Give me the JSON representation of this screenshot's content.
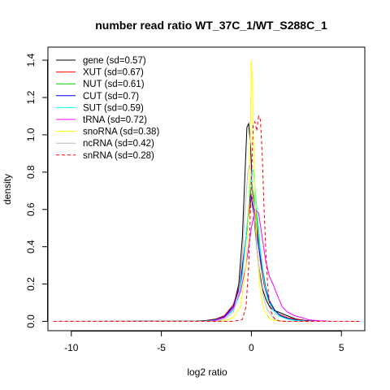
{
  "chart_data": {
    "type": "line",
    "title": "number read ratio WT_37C_1/WT_S288C_1",
    "xlabel": "log2 ratio",
    "ylabel": "density",
    "xlim": [
      -11.3,
      6.3
    ],
    "ylim": [
      -0.05,
      1.47
    ],
    "xticks": [
      -10,
      -5,
      0,
      5
    ],
    "xtick_labels": [
      "-10",
      "-5",
      "0",
      "5"
    ],
    "yticks": [
      0.0,
      0.2,
      0.4,
      0.6,
      0.8,
      1.0,
      1.2,
      1.4
    ],
    "ytick_labels": [
      "0.0",
      "0.2",
      "0.4",
      "0.6",
      "0.8",
      "1.0",
      "1.2",
      "1.4"
    ],
    "grid": false,
    "legend_position": "top-left",
    "series": [
      {
        "name": "gene (sd=0.57)",
        "color": "#000000",
        "dash": "solid",
        "x": [
          -11.0,
          -3,
          -2.5,
          -2,
          -1.5,
          -1.0,
          -0.7,
          -0.5,
          -0.35,
          -0.25,
          -0.15,
          -0.05,
          0.05,
          0.2,
          0.4,
          0.6,
          0.8,
          1.0,
          1.2,
          1.5,
          2.0,
          2.5,
          3.0,
          3.5,
          4.0,
          5.0,
          6.0
        ],
        "y": [
          0,
          0.002,
          0.005,
          0.012,
          0.03,
          0.08,
          0.2,
          0.45,
          0.8,
          1.04,
          1.06,
          0.95,
          0.72,
          0.5,
          0.3,
          0.18,
          0.12,
          0.08,
          0.06,
          0.05,
          0.03,
          0.012,
          0.005,
          0.002,
          0,
          0,
          0
        ]
      },
      {
        "name": "XUT (sd=0.67)",
        "color": "#ff0000",
        "dash": "solid",
        "x": [
          -11.0,
          -3,
          -2.5,
          -2,
          -1.5,
          -1.0,
          -0.7,
          -0.5,
          -0.3,
          -0.1,
          0.0,
          0.1,
          0.2,
          0.35,
          0.5,
          0.7,
          0.9,
          1.2,
          1.5,
          2.0,
          2.5,
          3.0,
          4.0,
          6.0
        ],
        "y": [
          0,
          0,
          0.003,
          0.01,
          0.03,
          0.09,
          0.18,
          0.3,
          0.45,
          0.6,
          0.67,
          0.65,
          0.58,
          0.45,
          0.32,
          0.2,
          0.12,
          0.07,
          0.04,
          0.02,
          0.01,
          0.003,
          0,
          0
        ]
      },
      {
        "name": "NUT (sd=0.61)",
        "color": "#00cc00",
        "dash": "solid",
        "x": [
          -11.0,
          -3,
          -2.5,
          -2,
          -1.5,
          -1.0,
          -0.7,
          -0.5,
          -0.3,
          -0.1,
          0.0,
          0.1,
          0.25,
          0.4,
          0.6,
          0.8,
          1.0,
          1.3,
          1.6,
          2.0,
          2.5,
          3.0,
          4.0,
          6.0
        ],
        "y": [
          0,
          0,
          0.002,
          0.006,
          0.02,
          0.06,
          0.14,
          0.26,
          0.45,
          0.66,
          0.72,
          0.7,
          0.6,
          0.45,
          0.3,
          0.18,
          0.1,
          0.06,
          0.03,
          0.015,
          0.006,
          0.002,
          0,
          0
        ]
      },
      {
        "name": "CUT (sd=0.7)",
        "color": "#0000ff",
        "dash": "solid",
        "x": [
          -11.0,
          -3,
          -2.5,
          -2,
          -1.5,
          -1.0,
          -0.7,
          -0.5,
          -0.3,
          -0.15,
          -0.05,
          0.0,
          0.1,
          0.25,
          0.4,
          0.6,
          0.8,
          1.0,
          1.3,
          1.6,
          2.0,
          2.5,
          3.0,
          4.0,
          6.0
        ],
        "y": [
          0,
          0,
          0.002,
          0.008,
          0.025,
          0.08,
          0.17,
          0.28,
          0.45,
          0.6,
          0.68,
          0.66,
          0.6,
          0.5,
          0.4,
          0.28,
          0.18,
          0.11,
          0.06,
          0.03,
          0.015,
          0.006,
          0.002,
          0,
          0
        ]
      },
      {
        "name": "SUT (sd=0.59)",
        "color": "#00ffff",
        "dash": "solid",
        "x": [
          -11.0,
          -3,
          -2.5,
          -2,
          -1.5,
          -1.0,
          -0.7,
          -0.5,
          -0.3,
          -0.15,
          0.0,
          0.1,
          0.2,
          0.35,
          0.5,
          0.7,
          0.9,
          1.2,
          1.5,
          2.0,
          2.5,
          3.0,
          4.0,
          6.0
        ],
        "y": [
          0,
          0,
          0.002,
          0.006,
          0.02,
          0.06,
          0.13,
          0.25,
          0.45,
          0.62,
          0.8,
          0.81,
          0.72,
          0.55,
          0.38,
          0.22,
          0.12,
          0.06,
          0.03,
          0.012,
          0.004,
          0.001,
          0,
          0
        ]
      },
      {
        "name": "tRNA (sd=0.72)",
        "color": "#ff00ff",
        "dash": "solid",
        "x": [
          -11.0,
          -2.5,
          -2,
          -1.5,
          -1.0,
          -0.6,
          -0.3,
          0.0,
          0.2,
          0.4,
          0.6,
          0.8,
          1.0,
          1.2,
          1.4,
          1.7,
          2.0,
          2.4,
          2.8,
          3.2,
          3.8,
          4.5,
          6.0
        ],
        "y": [
          0,
          0,
          0.004,
          0.02,
          0.07,
          0.16,
          0.3,
          0.5,
          0.6,
          0.58,
          0.45,
          0.32,
          0.24,
          0.2,
          0.15,
          0.08,
          0.05,
          0.03,
          0.02,
          0.008,
          0.003,
          0,
          0
        ]
      },
      {
        "name": "snoRNA (sd=0.38)",
        "color": "#ffff00",
        "dash": "solid",
        "x": [
          -11.0,
          -2,
          -1.5,
          -1.0,
          -0.6,
          -0.3,
          -0.15,
          -0.05,
          0.0,
          0.05,
          0.1,
          0.2,
          0.3,
          0.45,
          0.6,
          0.8,
          1.0,
          1.3,
          1.6,
          2.0,
          6.0
        ],
        "y": [
          0,
          0,
          0.003,
          0.02,
          0.08,
          0.3,
          0.6,
          1.05,
          1.4,
          1.3,
          1.05,
          0.7,
          0.42,
          0.2,
          0.1,
          0.04,
          0.015,
          0.005,
          0.002,
          0,
          0
        ]
      },
      {
        "name": "ncRNA (sd=0.42)",
        "color": "#bebebe",
        "dash": "solid",
        "x": [
          -11.0,
          -2,
          -1.5,
          -1.0,
          -0.7,
          -0.5,
          -0.35,
          -0.2,
          -0.1,
          0.0,
          0.1,
          0.2,
          0.35,
          0.5,
          0.7,
          0.9,
          1.2,
          1.5,
          2.0,
          6.0
        ],
        "y": [
          0,
          0,
          0.01,
          0.05,
          0.15,
          0.35,
          0.6,
          0.8,
          0.84,
          0.8,
          0.68,
          0.52,
          0.35,
          0.22,
          0.12,
          0.06,
          0.02,
          0.005,
          0,
          0
        ]
      },
      {
        "name": "snRNA (sd=0.28)",
        "color": "#ff0000",
        "dash": "dashed",
        "x": [
          -11.0,
          -1.0,
          -0.5,
          -0.3,
          -0.15,
          0.0,
          0.1,
          0.2,
          0.3,
          0.4,
          0.5,
          0.6,
          0.7,
          0.8,
          0.9,
          1.0,
          1.1,
          1.3,
          1.6,
          6.0
        ],
        "y": [
          0,
          0,
          0.01,
          0.08,
          0.3,
          0.75,
          1.05,
          1.07,
          1.02,
          1.1,
          1.08,
          0.9,
          0.62,
          0.38,
          0.2,
          0.1,
          0.05,
          0.01,
          0,
          0
        ]
      }
    ]
  }
}
